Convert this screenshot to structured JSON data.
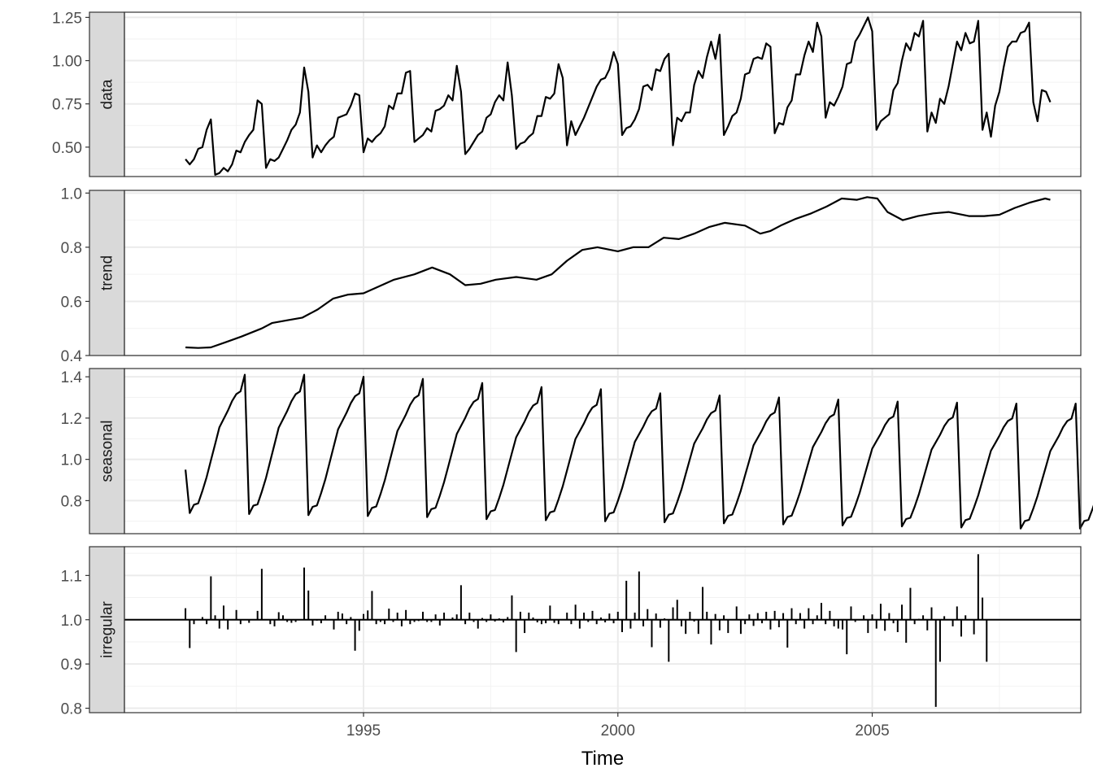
{
  "chart_data": {
    "type": "line",
    "xlabel": "Time",
    "x_ticks": [
      1995,
      2000,
      2005
    ],
    "x_range": [
      1990.3,
      2009.1
    ],
    "start": 1991.5,
    "frequency": 12,
    "panels": [
      {
        "name": "data",
        "kind": "line",
        "ylim": [
          0.33,
          1.28
        ],
        "yticks": [
          0.5,
          0.75,
          1.0,
          1.25
        ],
        "ytick_labels": [
          "0.50",
          "0.75",
          "1.00",
          "1.25"
        ],
        "values": [
          0.43,
          0.4,
          0.43,
          0.49,
          0.5,
          0.6,
          0.66,
          0.34,
          0.35,
          0.38,
          0.36,
          0.4,
          0.48,
          0.47,
          0.53,
          0.57,
          0.6,
          0.77,
          0.75,
          0.38,
          0.43,
          0.42,
          0.44,
          0.49,
          0.54,
          0.6,
          0.63,
          0.7,
          0.96,
          0.82,
          0.44,
          0.51,
          0.47,
          0.51,
          0.54,
          0.56,
          0.67,
          0.68,
          0.69,
          0.74,
          0.81,
          0.8,
          0.47,
          0.55,
          0.53,
          0.56,
          0.58,
          0.62,
          0.74,
          0.72,
          0.81,
          0.81,
          0.93,
          0.94,
          0.53,
          0.55,
          0.57,
          0.61,
          0.59,
          0.71,
          0.72,
          0.74,
          0.8,
          0.77,
          0.97,
          0.82,
          0.46,
          0.49,
          0.53,
          0.57,
          0.59,
          0.67,
          0.69,
          0.76,
          0.8,
          0.77,
          0.99,
          0.8,
          0.49,
          0.52,
          0.53,
          0.56,
          0.58,
          0.68,
          0.68,
          0.79,
          0.78,
          0.81,
          0.98,
          0.9,
          0.51,
          0.65,
          0.57,
          0.62,
          0.67,
          0.73,
          0.79,
          0.85,
          0.89,
          0.9,
          0.95,
          1.05,
          0.98,
          0.57,
          0.61,
          0.62,
          0.66,
          0.72,
          0.85,
          0.86,
          0.83,
          0.95,
          0.94,
          1.01,
          1.04,
          0.51,
          0.67,
          0.65,
          0.7,
          0.7,
          0.86,
          0.94,
          0.9,
          1.02,
          1.11,
          1.01,
          1.15,
          0.57,
          0.62,
          0.68,
          0.7,
          0.78,
          0.92,
          0.93,
          1.01,
          1.02,
          1.01,
          1.1,
          1.08,
          0.58,
          0.64,
          0.63,
          0.73,
          0.77,
          0.92,
          0.92,
          1.03,
          1.11,
          1.05,
          1.22,
          1.14,
          0.67,
          0.76,
          0.74,
          0.79,
          0.85,
          0.98,
          0.99,
          1.11,
          1.15,
          1.2,
          1.25,
          1.17,
          0.6,
          0.65,
          0.67,
          0.69,
          0.83,
          0.87,
          1.0,
          1.1,
          1.06,
          1.16,
          1.14,
          1.23,
          0.59,
          0.7,
          0.64,
          0.78,
          0.75,
          0.85,
          0.98,
          1.11,
          1.06,
          1.16,
          1.1,
          1.11,
          1.23,
          0.6,
          0.7,
          0.56,
          0.74,
          0.82,
          0.96,
          1.08,
          1.11,
          1.11,
          1.16,
          1.17,
          1.22,
          0.76,
          0.65,
          0.83,
          0.82,
          0.76
        ]
      },
      {
        "name": "trend",
        "kind": "line",
        "ylim": [
          0.4,
          1.01
        ],
        "yticks": [
          0.4,
          0.6,
          0.8,
          1.0
        ],
        "ytick_labels": [
          "0.4",
          "0.6",
          "0.8",
          "1.0"
        ],
        "x": [
          1991.5,
          1991.75,
          1992.0,
          1992.3,
          1992.6,
          1993.0,
          1993.2,
          1993.5,
          1993.8,
          1994.1,
          1994.4,
          1994.7,
          1995.0,
          1995.3,
          1995.6,
          1996.0,
          1996.35,
          1996.7,
          1997.0,
          1997.3,
          1997.6,
          1998.0,
          1998.4,
          1998.7,
          1999.0,
          1999.3,
          1999.6,
          2000.0,
          2000.3,
          2000.6,
          2000.9,
          2001.2,
          2001.5,
          2001.8,
          2002.1,
          2002.5,
          2002.8,
          2003.0,
          2003.2,
          2003.5,
          2003.8,
          2004.1,
          2004.4,
          2004.7,
          2004.9,
          2005.1,
          2005.3,
          2005.6,
          2005.9,
          2006.2,
          2006.5,
          2006.9,
          2007.2,
          2007.5,
          2007.8,
          2008.1,
          2008.4,
          2008.5
        ],
        "values": [
          0.43,
          0.428,
          0.43,
          0.45,
          0.47,
          0.5,
          0.52,
          0.53,
          0.54,
          0.57,
          0.61,
          0.625,
          0.63,
          0.655,
          0.68,
          0.7,
          0.725,
          0.7,
          0.66,
          0.665,
          0.68,
          0.69,
          0.68,
          0.7,
          0.75,
          0.79,
          0.8,
          0.785,
          0.8,
          0.8,
          0.835,
          0.83,
          0.85,
          0.875,
          0.89,
          0.88,
          0.85,
          0.86,
          0.88,
          0.905,
          0.925,
          0.95,
          0.98,
          0.975,
          0.985,
          0.98,
          0.93,
          0.9,
          0.915,
          0.925,
          0.93,
          0.915,
          0.915,
          0.92,
          0.945,
          0.965,
          0.98,
          0.975
        ]
      },
      {
        "name": "seasonal",
        "kind": "line",
        "ylim": [
          0.64,
          1.44
        ],
        "yticks": [
          0.8,
          1.0,
          1.2,
          1.4
        ],
        "ytick_labels": [
          "0.8",
          "1.0",
          "1.2",
          "1.4"
        ],
        "cycle_peak": [
          1.41,
          1.41,
          1.4,
          1.39,
          1.37,
          1.35,
          1.34,
          1.32,
          1.31,
          1.3,
          1.29,
          1.28,
          1.275,
          1.27,
          1.27,
          1.27,
          1.27
        ],
        "cycle_low": [
          0.74,
          0.735,
          0.73,
          0.725,
          0.72,
          0.71,
          0.705,
          0.7,
          0.695,
          0.69,
          0.685,
          0.68,
          0.675,
          0.67,
          0.665,
          0.665,
          0.665
        ],
        "cycle_shape": [
          0.0,
          0.06,
          0.07,
          0.16,
          0.26,
          0.38,
          0.5,
          0.62,
          0.68,
          0.74,
          0.81,
          0.86,
          0.88,
          1.0
        ],
        "start_value": 0.95,
        "tail_values": [
          0.665,
          0.72,
          0.76,
          0.83,
          0.87
        ]
      },
      {
        "name": "irregular",
        "kind": "segments",
        "baseline": 1.0,
        "ylim": [
          0.79,
          1.165
        ],
        "yticks": [
          0.8,
          0.9,
          1.0,
          1.1
        ],
        "ytick_labels": [
          "0.8",
          "0.9",
          "1.0",
          "1.1"
        ],
        "values": [
          1.026,
          0.936,
          0.99,
          1.0,
          1.006,
          0.99,
          1.098,
          1.01,
          0.98,
          1.032,
          0.978,
          1.0,
          1.022,
          0.99,
          1.0,
          0.993,
          1.0,
          1.02,
          1.115,
          1.0,
          0.99,
          0.985,
          1.017,
          1.01,
          0.995,
          0.993,
          0.995,
          1.0,
          1.118,
          1.066,
          0.987,
          0.998,
          0.992,
          1.01,
          1.0,
          0.978,
          1.018,
          1.014,
          0.99,
          1.006,
          0.93,
          0.975,
          1.013,
          1.021,
          1.065,
          0.99,
          0.995,
          0.99,
          1.025,
          0.995,
          1.016,
          0.985,
          1.022,
          0.99,
          0.995,
          0.997,
          1.018,
          0.995,
          0.995,
          1.012,
          0.987,
          1.016,
          1.0,
          1.005,
          1.012,
          1.078,
          0.99,
          1.016,
          0.995,
          0.98,
          1.004,
          0.995,
          1.012,
          0.996,
          1.003,
          0.994,
          1.006,
          1.055,
          0.927,
          1.018,
          0.97,
          1.016,
          1.005,
          0.994,
          0.99,
          0.992,
          1.032,
          0.993,
          0.99,
          1.0,
          1.016,
          0.99,
          1.034,
          0.98,
          1.016,
          0.995,
          1.02,
          0.99,
          1.005,
          0.994,
          1.014,
          0.992,
          1.018,
          0.972,
          1.088,
          0.98,
          1.016,
          1.109,
          0.985,
          1.024,
          0.938,
          1.014,
          0.982,
          1.003,
          0.905,
          1.028,
          1.045,
          0.985,
          0.968,
          1.018,
          0.996,
          0.968,
          1.074,
          1.018,
          0.944,
          1.013,
          0.976,
          1.01,
          0.97,
          1.0,
          1.03,
          0.968,
          0.99,
          1.012,
          0.986,
          1.015,
          0.992,
          1.018,
          0.978,
          1.02,
          0.983,
          1.015,
          0.937,
          1.026,
          0.99,
          1.015,
          0.98,
          1.026,
          0.99,
          1.01,
          1.038,
          0.99,
          1.02,
          0.985,
          0.98,
          0.978,
          0.922,
          1.03,
          0.995,
          1.0,
          1.01,
          0.97,
          1.012,
          0.98,
          1.036,
          0.975,
          1.015,
          0.992,
          0.972,
          1.034,
          0.948,
          1.072,
          0.99,
          1.002,
          1.01,
          0.976,
          1.028,
          0.803,
          0.905,
          1.008,
          1.0,
          0.985,
          1.03,
          0.962,
          1.01,
          1.0,
          0.967,
          1.148,
          1.05,
          0.905
        ]
      }
    ]
  }
}
